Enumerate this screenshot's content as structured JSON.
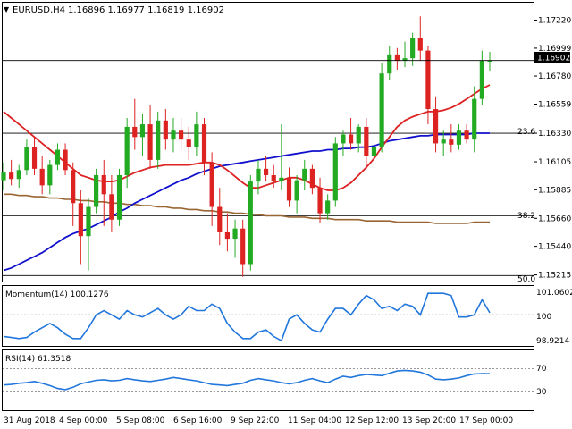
{
  "header": {
    "symbol_label": "EURUSD,H4",
    "ohlc": "1.16896 1.16977 1.16819 1.16902"
  },
  "price_axis": {
    "ticks": [
      "1.17220",
      "1.16999",
      "1.16780",
      "1.16559",
      "1.16330",
      "1.16105",
      "1.15885",
      "1.15660",
      "1.15440",
      "1.15215"
    ],
    "current_price": "1.16902"
  },
  "fib_levels": [
    {
      "label": "23.6",
      "price": 1.1633
    },
    {
      "label": "38.2",
      "price": 1.1568
    },
    {
      "label": "50.0",
      "price": 1.1521
    }
  ],
  "momentum": {
    "title": "Momentum(14) 100.1276",
    "ticks": [
      "101.0602",
      "100",
      "98.9214"
    ]
  },
  "rsi": {
    "title": "RSI(14) 61.3518",
    "ticks": [
      "70",
      "30"
    ]
  },
  "time_axis": {
    "labels": [
      "31 Aug 2018",
      "4 Sep 00:00",
      "5 Sep 08:00",
      "6 Sep 16:00",
      "9 Sep 22:00",
      "11 Sep 04:00",
      "12 Sep 12:00",
      "13 Sep 20:00",
      "17 Sep 00:00"
    ]
  },
  "colors": {
    "bull": "#22aa22",
    "bear": "#dd2222",
    "ma_fast": "#dd2222",
    "ma_mid": "#1111cc",
    "ma_slow": "#996633",
    "indicator": "#2277dd"
  },
  "chart_data": {
    "type": "candlestick",
    "ylim": [
      1.1517,
      1.1735
    ],
    "candles": [
      [
        1.1596,
        1.161,
        1.1588,
        1.1602
      ],
      [
        1.1602,
        1.1612,
        1.1592,
        1.1597
      ],
      [
        1.1597,
        1.1608,
        1.159,
        1.1604
      ],
      [
        1.1604,
        1.1628,
        1.16,
        1.1622
      ],
      [
        1.1622,
        1.163,
        1.16,
        1.1605
      ],
      [
        1.1605,
        1.1615,
        1.1585,
        1.1592
      ],
      [
        1.1592,
        1.1612,
        1.1585,
        1.1608
      ],
      [
        1.1608,
        1.1625,
        1.1604,
        1.162
      ],
      [
        1.162,
        1.1625,
        1.16,
        1.1604
      ],
      [
        1.1604,
        1.161,
        1.156,
        1.1578
      ],
      [
        1.1578,
        1.1588,
        1.153,
        1.1552
      ],
      [
        1.1552,
        1.1582,
        1.1525,
        1.1575
      ],
      [
        1.1575,
        1.1605,
        1.157,
        1.16
      ],
      [
        1.16,
        1.1612,
        1.156,
        1.1585
      ],
      [
        1.1585,
        1.16,
        1.1555,
        1.1565
      ],
      [
        1.1565,
        1.1605,
        1.156,
        1.16
      ],
      [
        1.16,
        1.1645,
        1.159,
        1.1638
      ],
      [
        1.1638,
        1.166,
        1.162,
        1.163
      ],
      [
        1.163,
        1.1648,
        1.1615,
        1.164
      ],
      [
        1.164,
        1.1655,
        1.1605,
        1.1612
      ],
      [
        1.1612,
        1.165,
        1.1605,
        1.1643
      ],
      [
        1.1643,
        1.1652,
        1.162,
        1.1628
      ],
      [
        1.1628,
        1.1645,
        1.1618,
        1.1635
      ],
      [
        1.1635,
        1.1645,
        1.162,
        1.1628
      ],
      [
        1.1628,
        1.1638,
        1.1612,
        1.1622
      ],
      [
        1.1622,
        1.165,
        1.1615,
        1.164
      ],
      [
        1.164,
        1.1645,
        1.16,
        1.161
      ],
      [
        1.161,
        1.1618,
        1.156,
        1.1575
      ],
      [
        1.1575,
        1.159,
        1.1545,
        1.1555
      ],
      [
        1.1555,
        1.157,
        1.154,
        1.155
      ],
      [
        1.155,
        1.1565,
        1.1535,
        1.1558
      ],
      [
        1.1558,
        1.1565,
        1.152,
        1.153
      ],
      [
        1.153,
        1.16,
        1.1525,
        1.1595
      ],
      [
        1.1595,
        1.1612,
        1.1585,
        1.1605
      ],
      [
        1.1605,
        1.1615,
        1.1595,
        1.16
      ],
      [
        1.16,
        1.1608,
        1.159,
        1.1595
      ],
      [
        1.1595,
        1.164,
        1.1588,
        1.1598
      ],
      [
        1.1598,
        1.1606,
        1.1575,
        1.158
      ],
      [
        1.158,
        1.16,
        1.157,
        1.1596
      ],
      [
        1.1596,
        1.1612,
        1.1588,
        1.1605
      ],
      [
        1.1605,
        1.1608,
        1.1585,
        1.159
      ],
      [
        1.159,
        1.1598,
        1.1562,
        1.157
      ],
      [
        1.157,
        1.1585,
        1.1565,
        1.158
      ],
      [
        1.158,
        1.163,
        1.1575,
        1.1625
      ],
      [
        1.1625,
        1.1635,
        1.1615,
        1.1632
      ],
      [
        1.1632,
        1.1645,
        1.162,
        1.1625
      ],
      [
        1.1625,
        1.164,
        1.1618,
        1.1638
      ],
      [
        1.1638,
        1.1645,
        1.1605,
        1.1615
      ],
      [
        1.1615,
        1.163,
        1.1605,
        1.1622
      ],
      [
        1.1622,
        1.1688,
        1.1618,
        1.168
      ],
      [
        1.168,
        1.1702,
        1.1675,
        1.1695
      ],
      [
        1.1695,
        1.17,
        1.1683,
        1.169
      ],
      [
        1.169,
        1.1705,
        1.1685,
        1.1692
      ],
      [
        1.1692,
        1.1712,
        1.1686,
        1.1708
      ],
      [
        1.1708,
        1.1725,
        1.169,
        1.1698
      ],
      [
        1.1698,
        1.1702,
        1.164,
        1.1652
      ],
      [
        1.1652,
        1.1662,
        1.1618,
        1.1625
      ],
      [
        1.1625,
        1.1635,
        1.1615,
        1.1628
      ],
      [
        1.1628,
        1.164,
        1.1618,
        1.1624
      ],
      [
        1.1624,
        1.164,
        1.162,
        1.1635
      ],
      [
        1.1635,
        1.164,
        1.1625,
        1.1628
      ],
      [
        1.1628,
        1.167,
        1.1618,
        1.166
      ],
      [
        1.166,
        1.1698,
        1.1655,
        1.169
      ],
      [
        1.169,
        1.1697,
        1.1682,
        1.169
      ]
    ],
    "ma_fast": [
      1.165,
      1.1645,
      1.164,
      1.1635,
      1.163,
      1.1625,
      1.162,
      1.1615,
      1.161,
      1.1605,
      1.16,
      1.1598,
      1.1596,
      1.1595,
      1.1595,
      1.1596,
      1.1599,
      1.1602,
      1.1604,
      1.1606,
      1.1607,
      1.1608,
      1.1608,
      1.1608,
      1.1608,
      1.1609,
      1.161,
      1.161,
      1.1608,
      1.1604,
      1.1599,
      1.1594,
      1.159,
      1.159,
      1.1592,
      1.1594,
      1.1596,
      1.1598,
      1.1598,
      1.1596,
      1.1593,
      1.159,
      1.1588,
      1.1588,
      1.159,
      1.1594,
      1.16,
      1.1606,
      1.1613,
      1.1622,
      1.163,
      1.1638,
      1.1643,
      1.1646,
      1.1648,
      1.165,
      1.165,
      1.1651,
      1.1653,
      1.1656,
      1.166,
      1.1664,
      1.1668,
      1.1671
    ],
    "ma_mid": [
      1.1525,
      1.1527,
      1.153,
      1.1533,
      1.1536,
      1.1539,
      1.1543,
      1.1547,
      1.1551,
      1.1554,
      1.1556,
      1.1558,
      1.1561,
      1.1564,
      1.1567,
      1.1571,
      1.1574,
      1.1578,
      1.1581,
      1.1584,
      1.1587,
      1.159,
      1.1593,
      1.1596,
      1.1598,
      1.1601,
      1.1603,
      1.1605,
      1.1607,
      1.1608,
      1.1609,
      1.161,
      1.1611,
      1.1612,
      1.1613,
      1.1614,
      1.1615,
      1.1616,
      1.1617,
      1.1618,
      1.1619,
      1.1619,
      1.162,
      1.162,
      1.1621,
      1.1621,
      1.1622,
      1.1622,
      1.1623,
      1.1625,
      1.1627,
      1.1628,
      1.1629,
      1.163,
      1.1631,
      1.1631,
      1.1632,
      1.1632,
      1.1632,
      1.1632,
      1.1632,
      1.1633,
      1.1633,
      1.1633
    ],
    "ma_slow": [
      1.1585,
      1.1585,
      1.1584,
      1.1584,
      1.1583,
      1.1583,
      1.1582,
      1.1582,
      1.1581,
      1.1581,
      1.158,
      1.158,
      1.1579,
      1.1579,
      1.1578,
      1.1578,
      1.1577,
      1.1577,
      1.1576,
      1.1576,
      1.1575,
      1.1575,
      1.1574,
      1.1574,
      1.1573,
      1.1573,
      1.1572,
      1.1572,
      1.1571,
      1.1571,
      1.157,
      1.157,
      1.1569,
      1.1569,
      1.1568,
      1.1568,
      1.1568,
      1.1567,
      1.1567,
      1.1567,
      1.1566,
      1.1566,
      1.1566,
      1.1565,
      1.1565,
      1.1565,
      1.1565,
      1.1564,
      1.1564,
      1.1564,
      1.1564,
      1.1563,
      1.1563,
      1.1563,
      1.1563,
      1.1563,
      1.1562,
      1.1562,
      1.1562,
      1.1562,
      1.1562,
      1.1563,
      1.1563,
      1.1563
    ],
    "momentum_range": [
      98.6,
      101.3
    ],
    "momentum": [
      99.0,
      98.95,
      98.9,
      98.95,
      99.2,
      99.4,
      99.6,
      99.4,
      99.1,
      98.9,
      98.9,
      99.4,
      100.0,
      100.2,
      100.0,
      99.8,
      100.2,
      100.0,
      99.9,
      100.1,
      100.3,
      100.0,
      99.8,
      100.0,
      100.4,
      100.2,
      100.2,
      100.5,
      100.3,
      99.6,
      99.2,
      98.9,
      98.9,
      99.2,
      99.3,
      99.0,
      98.8,
      99.8,
      100.0,
      99.6,
      99.3,
      99.2,
      99.8,
      100.3,
      100.3,
      100.0,
      100.5,
      100.9,
      100.7,
      100.3,
      100.4,
      100.2,
      100.5,
      100.4,
      100.0,
      101.0,
      101.0,
      101.0,
      100.9,
      99.9,
      99.9,
      100.0,
      100.7,
      100.1
    ],
    "rsi_range": [
      0,
      100
    ],
    "rsi": [
      42,
      43,
      45,
      46,
      48,
      45,
      41,
      36,
      34,
      38,
      44,
      47,
      50,
      51,
      49,
      50,
      53,
      51,
      49,
      48,
      50,
      52,
      55,
      53,
      51,
      49,
      46,
      43,
      42,
      41,
      43,
      45,
      50,
      53,
      51,
      49,
      46,
      44,
      46,
      50,
      53,
      49,
      46,
      52,
      57,
      55,
      58,
      60,
      59,
      58,
      62,
      66,
      67,
      66,
      64,
      59,
      52,
      51,
      52,
      54,
      58,
      61,
      61.5,
      61.3
    ]
  }
}
